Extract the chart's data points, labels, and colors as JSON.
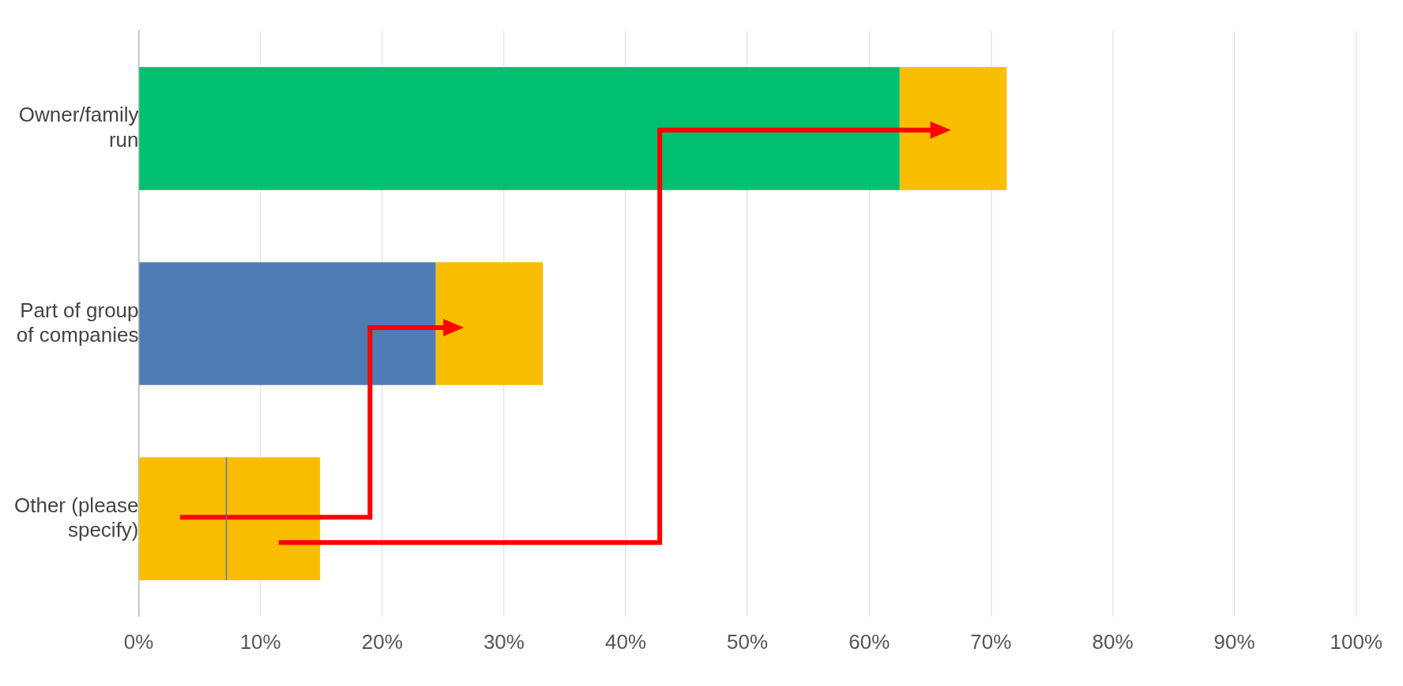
{
  "chart_data": {
    "type": "bar",
    "orientation": "horizontal",
    "stacked": true,
    "categories": [
      "Owner/family run",
      "Part of group of companies",
      "Other (please specify)"
    ],
    "series": [
      {
        "color": "#00bf6f",
        "values": [
          62.5,
          null,
          null
        ]
      },
      {
        "color": "#507cb6",
        "values": [
          null,
          24.4,
          null
        ]
      },
      {
        "color": "#f9be00",
        "values": [
          8.8,
          8.8,
          14.9
        ]
      }
    ],
    "xlim": [
      0,
      100
    ],
    "xticks": [
      {
        "value": 0,
        "label": "0%"
      },
      {
        "value": 10,
        "label": "10%"
      },
      {
        "value": 20,
        "label": "20%"
      },
      {
        "value": 30,
        "label": "30%"
      },
      {
        "value": 40,
        "label": "40%"
      },
      {
        "value": 50,
        "label": "50%"
      },
      {
        "value": 60,
        "label": "60%"
      },
      {
        "value": 70,
        "label": "70%"
      },
      {
        "value": 80,
        "label": "80%"
      },
      {
        "value": 90,
        "label": "90%"
      },
      {
        "value": 100,
        "label": "100%"
      }
    ],
    "grid": "x",
    "legend": false
  }
}
